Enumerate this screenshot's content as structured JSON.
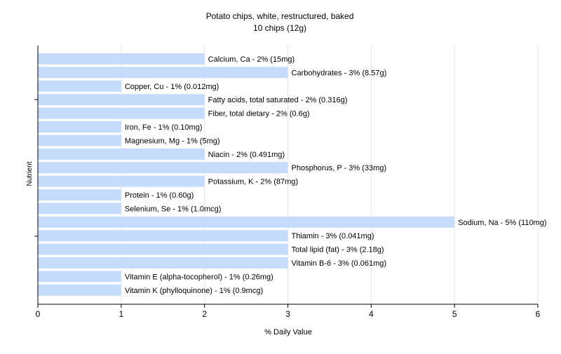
{
  "chart_data": {
    "type": "bar",
    "orientation": "horizontal",
    "title": "Potato chips, white, restructured, baked",
    "subtitle": "10 chips (12g)",
    "xlabel": "% Daily Value",
    "ylabel": "Nutrient",
    "xlim": [
      0,
      6
    ],
    "xticks": [
      0,
      1,
      2,
      3,
      4,
      5,
      6
    ],
    "grid": true,
    "bar_color": "#c6dcfc",
    "categories": [
      "Calcium, Ca",
      "Carbohydrates",
      "Copper, Cu",
      "Fatty acids, total saturated",
      "Fiber, total dietary",
      "Iron, Fe",
      "Magnesium, Mg",
      "Niacin",
      "Phosphorus, P",
      "Potassium, K",
      "Protein",
      "Selenium, Se",
      "Sodium, Na",
      "Thiamin",
      "Total lipid (fat)",
      "Vitamin B-6",
      "Vitamin E (alpha-tocopherol)",
      "Vitamin K (phylloquinone)"
    ],
    "values": [
      2,
      3,
      1,
      2,
      2,
      1,
      1,
      2,
      3,
      2,
      1,
      1,
      5,
      3,
      3,
      3,
      1,
      1
    ],
    "data_labels": [
      "Calcium, Ca - 2% (15mg)",
      "Carbohydrates - 3% (8.57g)",
      "Copper, Cu - 1% (0.012mg)",
      "Fatty acids, total saturated - 2% (0.316g)",
      "Fiber, total dietary - 2% (0.6g)",
      "Iron, Fe - 1% (0.10mg)",
      "Magnesium, Mg - 1% (5mg)",
      "Niacin - 2% (0.491mg)",
      "Phosphorus, P - 3% (33mg)",
      "Potassium, K - 2% (87mg)",
      "Protein - 1% (0.60g)",
      "Selenium, Se - 1% (1.0mcg)",
      "Sodium, Na - 5% (110mg)",
      "Thiamin - 3% (0.041mg)",
      "Total lipid (fat) - 3% (2.18g)",
      "Vitamin B-6 - 3% (0.061mg)",
      "Vitamin E (alpha-tocopherol) - 1% (0.26mg)",
      "Vitamin K (phylloquinone) - 1% (0.9mcg)"
    ]
  }
}
